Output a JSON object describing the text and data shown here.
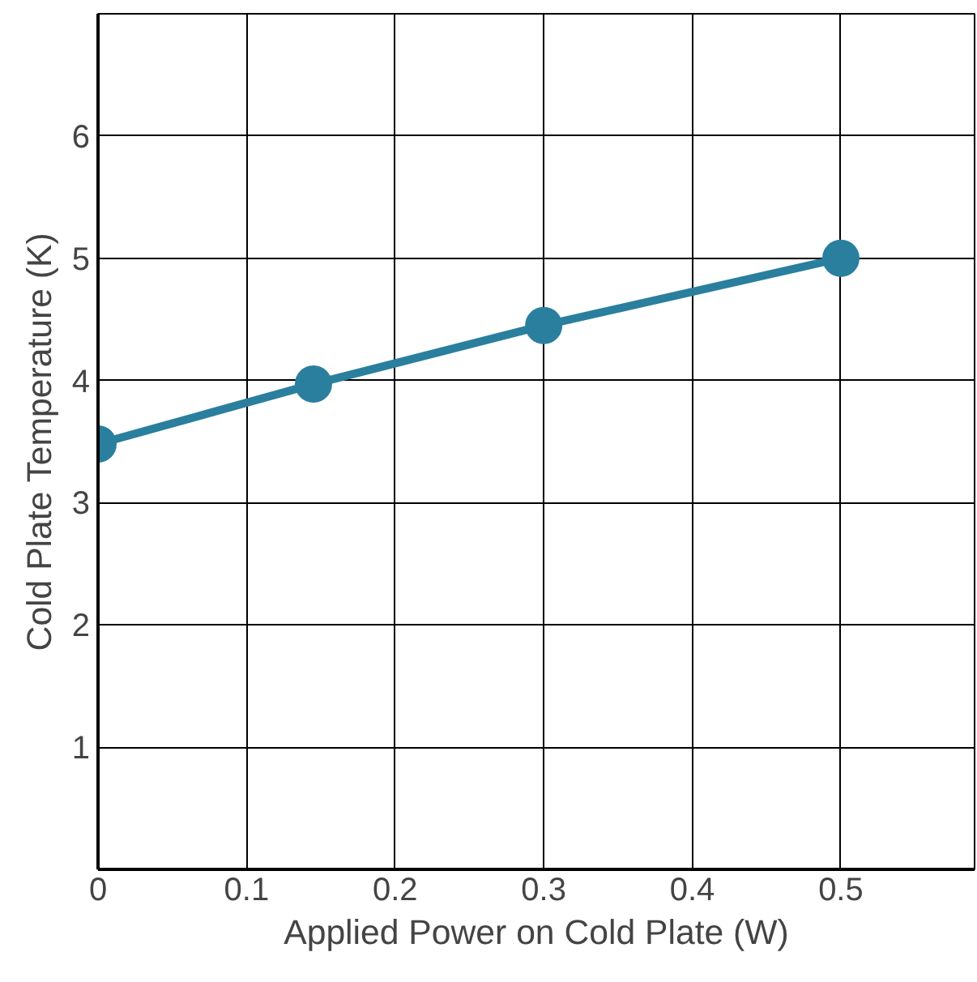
{
  "chart_data": {
    "type": "line",
    "xlabel": "Applied Power on Cold Plate (W)",
    "ylabel": "Cold Plate Temperature (K)",
    "x": [
      0,
      0.145,
      0.3,
      0.5
    ],
    "series": [
      {
        "color": "#2a7f9e",
        "values": [
          3.48,
          3.97,
          4.45,
          5.0
        ]
      }
    ],
    "xlim": [
      0,
      0.59
    ],
    "ylim": [
      0,
      7
    ],
    "xticks": [
      0,
      0.1,
      0.2,
      0.3,
      0.4,
      0.5
    ],
    "yticks": [
      1,
      2,
      3,
      4,
      5,
      6
    ],
    "grid": true,
    "marker": "circle",
    "line_style": "solid"
  }
}
